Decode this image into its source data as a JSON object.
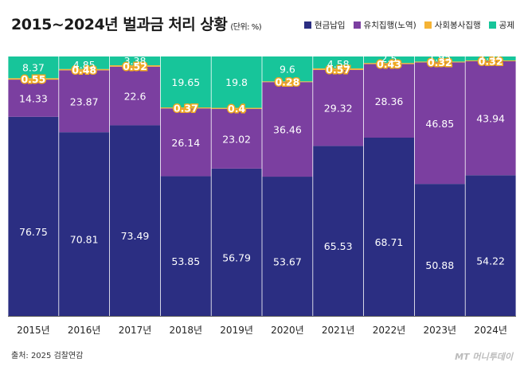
{
  "title": "2015~2024년 벌과금 처리 상황",
  "unit": "(단위: %)",
  "source": "출처: 2025 검찰연감",
  "logo": "MT 머니투데이",
  "colors": {
    "cash": "#2b2e82",
    "labor": "#7b3fa0",
    "service": "#f5b335",
    "deduction": "#17c59a"
  },
  "chart_data": {
    "type": "bar",
    "stacked": true,
    "categories": [
      "2015년",
      "2016년",
      "2017년",
      "2018년",
      "2019년",
      "2020년",
      "2021년",
      "2022년",
      "2023년",
      "2024년"
    ],
    "series": [
      {
        "name": "현금납입",
        "values": [
          76.75,
          70.81,
          73.49,
          53.85,
          56.79,
          53.67,
          65.53,
          68.71,
          50.88,
          54.22
        ]
      },
      {
        "name": "유치집행(노역)",
        "values": [
          14.33,
          23.87,
          22.6,
          26.14,
          23.02,
          36.46,
          29.32,
          28.36,
          46.85,
          43.94
        ]
      },
      {
        "name": "사회봉사집행",
        "values": [
          0.55,
          0.48,
          0.52,
          0.37,
          0.4,
          0.28,
          0.57,
          0.43,
          0.32,
          0.32
        ]
      },
      {
        "name": "공제",
        "values": [
          8.37,
          4.85,
          3.38,
          19.65,
          19.8,
          9.6,
          4.58,
          2.5,
          1.95,
          1.52
        ]
      }
    ],
    "ylim": [
      0,
      100
    ],
    "legend_position": "top-right",
    "grid": false
  }
}
